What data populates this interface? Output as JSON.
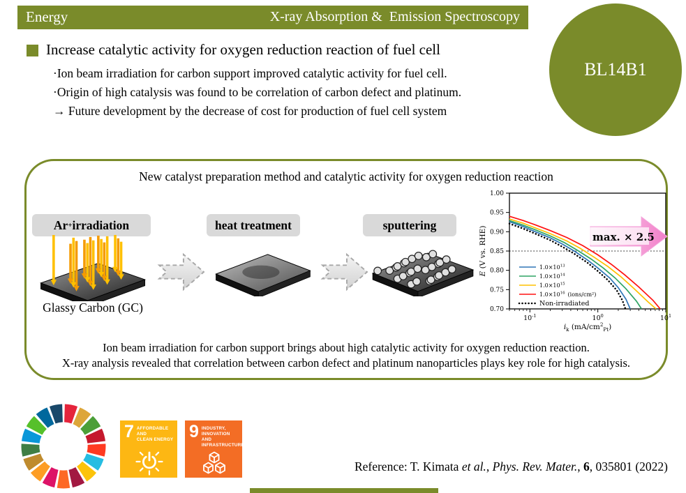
{
  "colors": {
    "olive": "#7A8B2A",
    "label_bg": "#D9D9D9",
    "pink_dark": "#F27EC9",
    "pink_light": "#FBDCF0"
  },
  "header": {
    "category": "Energy",
    "title": "X-ray Absorption &  Emission Spectroscopy",
    "beamline": "BL14B1"
  },
  "summary": {
    "headline": "Increase catalytic activity for oxygen reduction reaction of fuel cell",
    "bullets": [
      "·Ion beam irradiation for carbon support improved catalytic activity for fuel cell.",
      "·Origin of high catalysis was found to be correlation of carbon defect and platinum.",
      "→ Future development by the decrease of cost for production of fuel cell system"
    ]
  },
  "panel": {
    "title": "New catalyst preparation method and catalytic activity for oxygen reduction reaction",
    "steps": [
      {
        "parts": [
          {
            "t": "Ar",
            "s": "n"
          },
          {
            "t": "+",
            "s": "sup"
          },
          {
            "t": " irradiation",
            "s": "n"
          }
        ]
      },
      {
        "parts": [
          {
            "t": "heat treatment",
            "s": "n"
          }
        ]
      },
      {
        "parts": [
          {
            "t": "sputtering",
            "s": "n"
          }
        ]
      }
    ],
    "substrate_label": "Glassy Carbon (GC)",
    "caption": [
      "Ion beam irradiation for carbon support brings about high catalytic activity for oxygen reduction reaction.",
      "X-ray analysis revealed that correlation between carbon defect and platinum nanoparticles plays key role for high catalysis."
    ]
  },
  "chart_data": {
    "type": "line",
    "x_scale": "log",
    "xlim": [
      0.05,
      10
    ],
    "ylim": [
      0.7,
      1.0
    ],
    "y_tick_step": 0.05,
    "x_ticks": [
      {
        "v": 0.1,
        "base": "10",
        "exp": "-1"
      },
      {
        "v": 1,
        "base": "10",
        "exp": "0"
      },
      {
        "v": 10,
        "base": "10",
        "exp": "1"
      }
    ],
    "ylabel_parts": [
      {
        "t": "E",
        "s": "i"
      },
      {
        "t": " (V vs. RHE)",
        "s": "n"
      }
    ],
    "xlabel_parts": [
      {
        "t": "i",
        "s": "i"
      },
      {
        "t": "k",
        "s": "sub"
      },
      {
        "t": " (mA/cm",
        "s": "n"
      },
      {
        "t": "2",
        "s": "sup"
      },
      {
        "t": "Pt",
        "s": "sub"
      },
      {
        "t": ")",
        "s": "n"
      }
    ],
    "ref_line_y": 0.85,
    "annotation": "max.  × 2.5",
    "legend_position": "lower-left",
    "grid": false,
    "series": [
      {
        "legend": {
          "base": "1.0×10",
          "exp": "13"
        },
        "color": "#2E75B6",
        "points": [
          [
            0.05,
            0.926
          ],
          [
            0.08,
            0.913
          ],
          [
            0.12,
            0.9
          ],
          [
            0.2,
            0.884
          ],
          [
            0.3,
            0.868
          ],
          [
            0.45,
            0.85
          ],
          [
            0.7,
            0.827
          ],
          [
            1.0,
            0.806
          ],
          [
            1.5,
            0.78
          ],
          [
            2.0,
            0.755
          ],
          [
            2.6,
            0.725
          ],
          [
            3.0,
            0.7
          ]
        ]
      },
      {
        "legend": {
          "base": "1.0×10",
          "exp": "14"
        },
        "color": "#2FA463",
        "points": [
          [
            0.05,
            0.929
          ],
          [
            0.08,
            0.917
          ],
          [
            0.12,
            0.905
          ],
          [
            0.2,
            0.889
          ],
          [
            0.32,
            0.872
          ],
          [
            0.5,
            0.852
          ],
          [
            0.8,
            0.829
          ],
          [
            1.2,
            0.806
          ],
          [
            1.8,
            0.78
          ],
          [
            2.6,
            0.752
          ],
          [
            3.7,
            0.72
          ],
          [
            4.4,
            0.7
          ]
        ]
      },
      {
        "legend": {
          "base": "1.0×10",
          "exp": "15"
        },
        "color": "#FFC000",
        "points": [
          [
            0.05,
            0.933
          ],
          [
            0.08,
            0.922
          ],
          [
            0.12,
            0.91
          ],
          [
            0.2,
            0.895
          ],
          [
            0.35,
            0.876
          ],
          [
            0.55,
            0.857
          ],
          [
            0.9,
            0.833
          ],
          [
            1.4,
            0.81
          ],
          [
            2.2,
            0.783
          ],
          [
            3.4,
            0.753
          ],
          [
            5.5,
            0.718
          ],
          [
            7.2,
            0.7
          ]
        ]
      },
      {
        "legend": {
          "base": "1.0×10",
          "exp": "16",
          "suffix": "(ions/cm²)"
        },
        "color": "#FF1111",
        "points": [
          [
            0.05,
            0.94
          ],
          [
            0.08,
            0.929
          ],
          [
            0.12,
            0.918
          ],
          [
            0.2,
            0.903
          ],
          [
            0.35,
            0.885
          ],
          [
            0.6,
            0.864
          ],
          [
            1.0,
            0.84
          ],
          [
            1.6,
            0.815
          ],
          [
            2.5,
            0.788
          ],
          [
            4.0,
            0.757
          ],
          [
            6.5,
            0.722
          ],
          [
            8.3,
            0.7
          ]
        ]
      },
      {
        "legend": {
          "base": "Non-irradiated"
        },
        "color": "#000000",
        "dotted": true,
        "points": [
          [
            0.05,
            0.921
          ],
          [
            0.08,
            0.908
          ],
          [
            0.12,
            0.895
          ],
          [
            0.2,
            0.878
          ],
          [
            0.3,
            0.861
          ],
          [
            0.45,
            0.843
          ],
          [
            0.7,
            0.82
          ],
          [
            1.0,
            0.798
          ],
          [
            1.4,
            0.775
          ],
          [
            1.9,
            0.748
          ],
          [
            2.3,
            0.722
          ],
          [
            2.55,
            0.7
          ]
        ]
      }
    ]
  },
  "sdg": {
    "wheel_colors": [
      "#E5243B",
      "#DDA63A",
      "#4C9F38",
      "#C5192D",
      "#FF3A21",
      "#26BDE2",
      "#FCC30B",
      "#A21942",
      "#FD6925",
      "#DD1367",
      "#FD9D24",
      "#BF8B2E",
      "#3F7E44",
      "#0A97D9",
      "#56C02B",
      "#00689D",
      "#19486A"
    ],
    "goal7": {
      "number": "7",
      "title_line1": "AFFORDABLE AND",
      "title_line2": "CLEAN ENERGY",
      "color": "#FDB713"
    },
    "goal9": {
      "number": "9",
      "title_line1": "INDUSTRY, INNOVATION",
      "title_line2": "AND INFRASTRUCTURE",
      "color": "#F36D25"
    }
  },
  "reference": {
    "parts": [
      {
        "t": "Reference: T.  Kimata ",
        "s": "n"
      },
      {
        "t": "et al.",
        "s": "i"
      },
      {
        "t": ", ",
        "s": "n"
      },
      {
        "t": "Phys. Rev. Mater.",
        "s": "i"
      },
      {
        "t": ", ",
        "s": "n"
      },
      {
        "t": "6",
        "s": "b"
      },
      {
        "t": ", 035801 (2022)",
        "s": "n"
      }
    ]
  }
}
